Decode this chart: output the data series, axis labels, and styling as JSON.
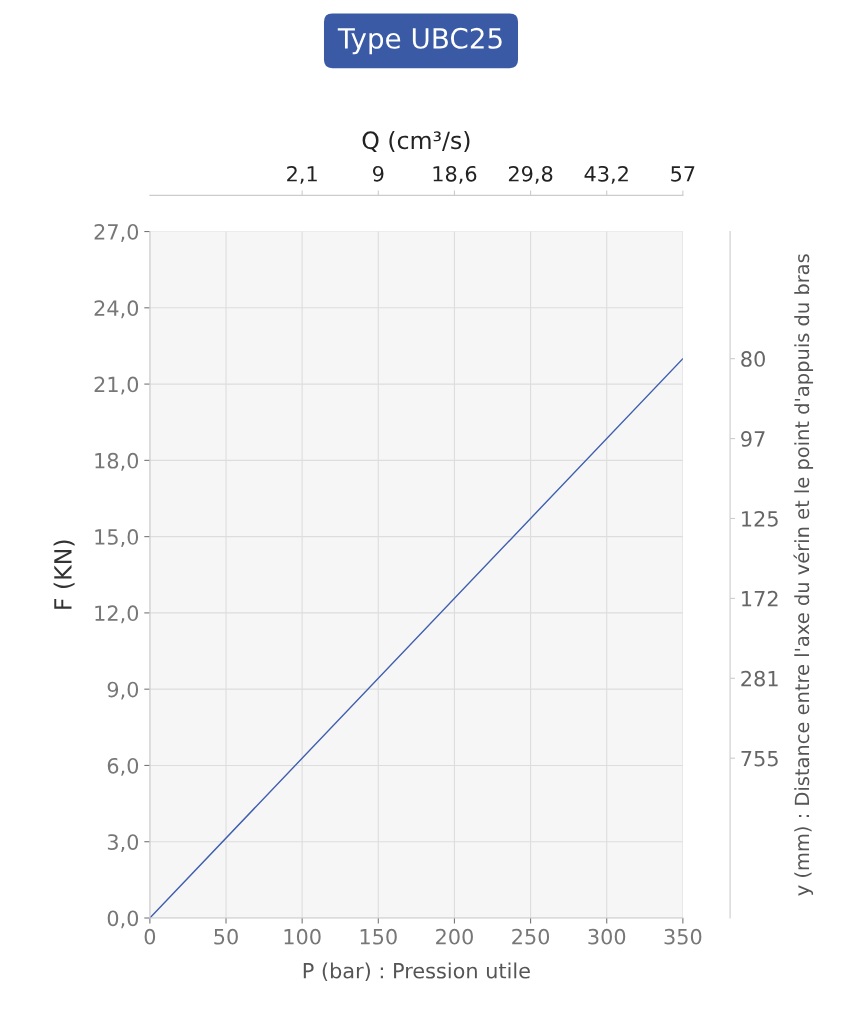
{
  "chart_data": {
    "type": "line",
    "title": "Type UBC25",
    "xlabel": "P (bar) : Pression utile",
    "ylabel": "F (KN)",
    "x2label": "Q (cm³/s)",
    "y2label": "y (mm) : Distance entre l'axe du vérin et le point d'appuis du bras",
    "series": [
      {
        "color": "#3f5fae",
        "x": [
          0,
          350
        ],
        "values": [
          0,
          22.0
        ]
      }
    ],
    "xlim": [
      0,
      350
    ],
    "xticks": [
      0,
      50,
      100,
      150,
      200,
      250,
      300,
      350
    ],
    "ylim": [
      0,
      27
    ],
    "yticks": [
      {
        "value": 0,
        "label": "0,0"
      },
      {
        "value": 3,
        "label": "3,0"
      },
      {
        "value": 6,
        "label": "6,0"
      },
      {
        "value": 9,
        "label": "9,0"
      },
      {
        "value": 12,
        "label": "12,0"
      },
      {
        "value": 15,
        "label": "15,0"
      },
      {
        "value": 18,
        "label": "18,0"
      },
      {
        "value": 21,
        "label": "21,0"
      },
      {
        "value": 24,
        "label": "24,0"
      },
      {
        "value": 27,
        "label": "27,0"
      }
    ],
    "annotations": [
      "2,1",
      "9",
      "18,6",
      "29,8",
      "43,2",
      "57"
    ],
    "y2_categories": [
      "80",
      "97",
      "125",
      "172",
      "281",
      "755",
      null,
      null
    ],
    "grid": true,
    "legend": false,
    "marker": "none",
    "line_style": "solid"
  }
}
